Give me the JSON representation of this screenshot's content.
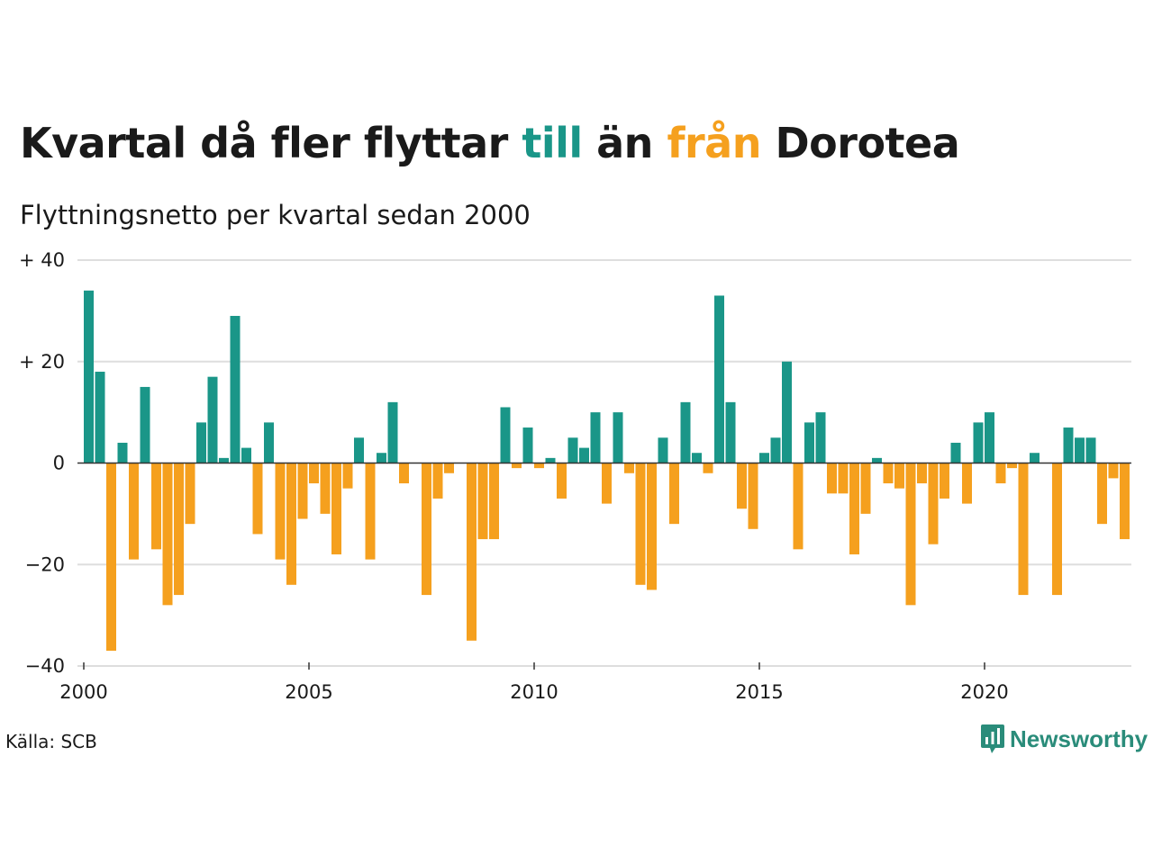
{
  "title": {
    "part1": "Kvartal då fler flyttar ",
    "word_in": "till",
    "part2": " än ",
    "word_out": "från",
    "part3": " Dorotea"
  },
  "subtitle": "Flyttningsnetto per kvartal sedan 2000",
  "source": "Källa: SCB",
  "brand": "Newsworthy",
  "colors": {
    "positive": "#1a9688",
    "negative": "#f5a01e",
    "grid": "#dedede",
    "brand": "#2a8c7a"
  },
  "chart_data": {
    "type": "bar",
    "x_start_year": 2000,
    "x_tick_labels": [
      "2000",
      "2005",
      "2010",
      "2015",
      "2020"
    ],
    "x_tick_years": [
      2000,
      2005,
      2010,
      2015,
      2020
    ],
    "y_tick_labels": [
      "+ 40",
      "+ 20",
      "0",
      "−20",
      "−40"
    ],
    "y_tick_values": [
      40,
      20,
      0,
      -20,
      -40
    ],
    "ylim": [
      -40,
      40
    ],
    "grid": true,
    "values": [
      34,
      18,
      -37,
      4,
      -19,
      15,
      -17,
      -28,
      -26,
      -12,
      8,
      17,
      1,
      29,
      3,
      -14,
      8,
      -19,
      -24,
      -11,
      -4,
      -10,
      -18,
      -5,
      5,
      -19,
      2,
      12,
      -4,
      0,
      -26,
      -7,
      -2,
      0,
      -35,
      -15,
      -15,
      11,
      -1,
      7,
      -1,
      1,
      -7,
      5,
      3,
      10,
      -8,
      10,
      -2,
      -24,
      -25,
      5,
      -12,
      12,
      2,
      -2,
      33,
      12,
      -9,
      -13,
      2,
      5,
      20,
      -17,
      8,
      10,
      -6,
      -6,
      -18,
      -10,
      1,
      -4,
      -5,
      -28,
      -4,
      -16,
      -7,
      4,
      -8,
      8,
      10,
      -4,
      -1,
      -26,
      2,
      0,
      -26,
      7,
      5,
      5,
      -12,
      -3,
      -15
    ]
  }
}
